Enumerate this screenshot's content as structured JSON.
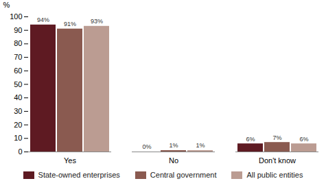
{
  "chart_data": {
    "type": "bar",
    "categories": [
      "Yes",
      "No",
      "Don't know"
    ],
    "series": [
      {
        "name": "State-owned enterprises",
        "color": "#5e1a22",
        "values": [
          94,
          0,
          6
        ],
        "value_labels": [
          "94%",
          "0%",
          "6%"
        ]
      },
      {
        "name": "Central government",
        "color": "#8a5a50",
        "values": [
          91,
          1,
          7
        ],
        "value_labels": [
          "91%",
          "1%",
          "7%"
        ]
      },
      {
        "name": "All public entities",
        "color": "#bb9c92",
        "values": [
          93,
          1,
          6
        ],
        "value_labels": [
          "93%",
          "1%",
          "6%"
        ]
      }
    ],
    "y_label": "%",
    "ylim": [
      0,
      100
    ],
    "yticks": [
      0,
      10,
      20,
      30,
      40,
      50,
      60,
      70,
      80,
      90,
      100
    ],
    "grid": false,
    "data_labels": true,
    "legend": "bottom"
  }
}
